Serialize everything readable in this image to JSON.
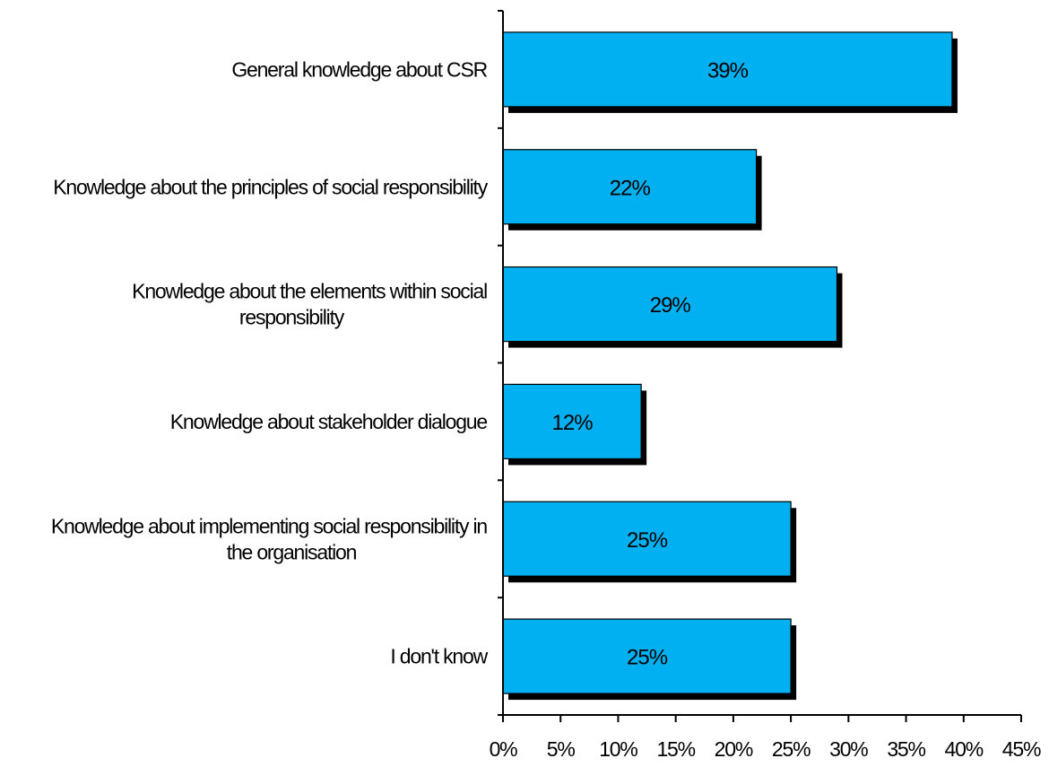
{
  "chart_data": {
    "type": "bar",
    "orientation": "horizontal",
    "categories": [
      [
        "General knowledge about CSR"
      ],
      [
        "Knowledge about the principles of social responsibility"
      ],
      [
        "Knowledge about the elements within social",
        "responsibility"
      ],
      [
        "Knowledge about stakeholder dialogue"
      ],
      [
        "Knowledge about implementing social responsibility in",
        "the organisation"
      ],
      [
        "I don't know"
      ]
    ],
    "values": [
      39,
      22,
      29,
      12,
      25,
      25
    ],
    "data_labels": [
      "39%",
      "22%",
      "29%",
      "12%",
      "25%",
      "25%"
    ],
    "xlim": [
      0,
      45
    ],
    "x_ticks": [
      0,
      5,
      10,
      15,
      20,
      25,
      30,
      35,
      40,
      45
    ],
    "x_tick_labels": [
      "0%",
      "5%",
      "10%",
      "15%",
      "20%",
      "25%",
      "30%",
      "35%",
      "40%",
      "45%"
    ],
    "title": "",
    "xlabel": "",
    "ylabel": "",
    "grid": false,
    "legend": "none",
    "colors": {
      "bar": "#00b0f0",
      "shadow": "#000000",
      "axis": "#000000"
    }
  }
}
